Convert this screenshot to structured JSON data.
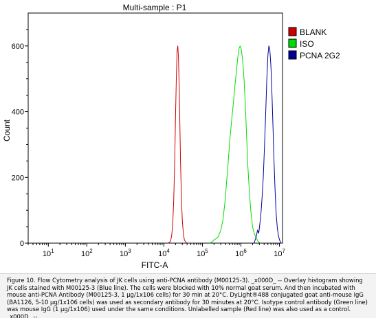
{
  "chart_data": {
    "type": "histogram",
    "title": "Multi-sample : P1",
    "xlabel": "FITC-A",
    "ylabel": "Count",
    "x_scale": "log",
    "xlim": [
      3,
      12000000
    ],
    "ylim": [
      0,
      700
    ],
    "x_ticks": [
      {
        "value": 10,
        "base": "10",
        "exp": "1"
      },
      {
        "value": 100,
        "base": "10",
        "exp": "2"
      },
      {
        "value": 1000,
        "base": "10",
        "exp": "3"
      },
      {
        "value": 10000,
        "base": "10",
        "exp": "4"
      },
      {
        "value": 100000,
        "base": "10",
        "exp": "5"
      },
      {
        "value": 1000000,
        "base": "10",
        "exp": "6"
      },
      {
        "value": 10000000,
        "base": "10",
        "exp": "7"
      }
    ],
    "y_ticks": [
      0,
      200,
      400,
      600
    ],
    "legend_position": "top-right",
    "series": [
      {
        "name": "BLANK",
        "color": "#cc0000",
        "points": [
          [
            12500,
            0
          ],
          [
            14000,
            2
          ],
          [
            15000,
            8
          ],
          [
            16000,
            25
          ],
          [
            17000,
            60
          ],
          [
            18000,
            130
          ],
          [
            19000,
            240
          ],
          [
            20000,
            380
          ],
          [
            21000,
            500
          ],
          [
            22000,
            585
          ],
          [
            23000,
            600
          ],
          [
            24000,
            560
          ],
          [
            25000,
            470
          ],
          [
            26000,
            360
          ],
          [
            27000,
            250
          ],
          [
            28500,
            140
          ],
          [
            30000,
            70
          ],
          [
            32000,
            30
          ],
          [
            34000,
            10
          ],
          [
            37000,
            3
          ],
          [
            40000,
            0
          ]
        ]
      },
      {
        "name": "ISO",
        "color": "#00dd00",
        "points": [
          [
            150000,
            0
          ],
          [
            180000,
            4
          ],
          [
            200000,
            10
          ],
          [
            230000,
            14
          ],
          [
            260000,
            20
          ],
          [
            300000,
            40
          ],
          [
            340000,
            70
          ],
          [
            380000,
            120
          ],
          [
            420000,
            180
          ],
          [
            470000,
            250
          ],
          [
            520000,
            320
          ],
          [
            580000,
            380
          ],
          [
            640000,
            430
          ],
          [
            700000,
            480
          ],
          [
            760000,
            520
          ],
          [
            820000,
            560
          ],
          [
            880000,
            590
          ],
          [
            950000,
            600
          ],
          [
            1020000,
            590
          ],
          [
            1100000,
            560
          ],
          [
            1200000,
            500
          ],
          [
            1300000,
            420
          ],
          [
            1400000,
            330
          ],
          [
            1500000,
            240
          ],
          [
            1650000,
            160
          ],
          [
            1800000,
            100
          ],
          [
            2000000,
            50
          ],
          [
            2200000,
            30
          ],
          [
            2500000,
            15
          ],
          [
            2800000,
            5
          ],
          [
            3200000,
            0
          ]
        ]
      },
      {
        "name": "PCNA 2G2",
        "color": "#000099",
        "points": [
          [
            2200000,
            0
          ],
          [
            2500000,
            20
          ],
          [
            2700000,
            40
          ],
          [
            2900000,
            30
          ],
          [
            3100000,
            60
          ],
          [
            3300000,
            90
          ],
          [
            3500000,
            130
          ],
          [
            3800000,
            200
          ],
          [
            4100000,
            300
          ],
          [
            4400000,
            400
          ],
          [
            4700000,
            500
          ],
          [
            5000000,
            570
          ],
          [
            5300000,
            600
          ],
          [
            5600000,
            590
          ],
          [
            6000000,
            540
          ],
          [
            6400000,
            450
          ],
          [
            6800000,
            350
          ],
          [
            7200000,
            250
          ],
          [
            7700000,
            160
          ],
          [
            8200000,
            90
          ],
          [
            8800000,
            45
          ],
          [
            9500000,
            20
          ],
          [
            10200000,
            8
          ],
          [
            11000000,
            0
          ]
        ]
      }
    ]
  },
  "caption": "Figure 10. Flow Cytometry analysis of JK cells using anti-PCNA antibody (M00125-3). _x000D_ -- Overlay histogram showing JK cells stained with M00125-3 (Blue line). The cells were blocked with 10% normal goat serum. And then incubated with mouse anti-PCNA Antibody (M00125-3, 1 µg/1x106 cells) for 30 min at 20°C. DyLight®488 conjugated goat anti-mouse IgG (BA1126, 5-10 µg/1x106 cells) was used as secondary antibody for 30 minutes at 20°C. Isotype control antibody (Green line) was mouse IgG (1 µg/1x106) used under the same conditions. Unlabelled sample (Red line) was also used as a control. _x000D_ --"
}
